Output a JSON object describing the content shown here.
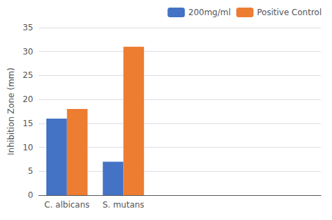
{
  "chart_data": {
    "type": "bar",
    "categories": [
      "C. albicans",
      "S. mutans",
      null,
      null,
      null
    ],
    "series": [
      {
        "name": "200mg/ml",
        "color": "#4472C4",
        "values": [
          16,
          7,
          0,
          0,
          0
        ]
      },
      {
        "name": "Positive Control",
        "color": "#ED7D31",
        "values": [
          18,
          31,
          0,
          0,
          0
        ]
      }
    ],
    "ylabel": "Inhibition Zone (mm)",
    "ylim": [
      0,
      35
    ],
    "yticks": [
      0,
      5,
      10,
      15,
      20,
      25,
      30,
      35
    ],
    "grid": true,
    "legend": "upper right"
  }
}
